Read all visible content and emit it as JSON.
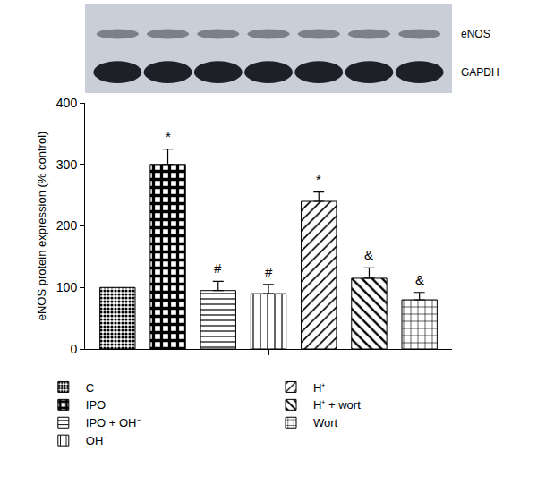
{
  "chart_data": {
    "type": "bar",
    "categories": [
      null
    ],
    "y_label": "eNOS protein expression (% control)",
    "ylim": [
      0,
      400
    ],
    "yticks": [
      0,
      100,
      200,
      300,
      400
    ],
    "tick_labels": "y",
    "grid": false,
    "legend": "bottom",
    "blot_labels": [
      "eNOS",
      "GAPDH"
    ],
    "series": [
      {
        "name": "C",
        "color": "#000000",
        "marker": "checker",
        "values": [
          100
        ],
        "error": [
          null
        ],
        "significance": null
      },
      {
        "name": "IPO",
        "color": "#000000",
        "marker": "bold_checker",
        "values": [
          300
        ],
        "error": [
          25
        ],
        "significance": "*"
      },
      {
        "name": "IPO + OH⁻",
        "color": "#000000",
        "marker": "horizontal",
        "values": [
          95
        ],
        "error": [
          15
        ],
        "significance": "#"
      },
      {
        "name": "OH⁻",
        "color": "#000000",
        "marker": "vertical",
        "values": [
          90
        ],
        "error": [
          15
        ],
        "significance": "#"
      },
      {
        "name": "H⁺",
        "color": "#000000",
        "marker": "diagonal",
        "values": [
          240
        ],
        "error": [
          15
        ],
        "significance": "*"
      },
      {
        "name": "H⁺ + wort",
        "color": "#000000",
        "marker": "back_diagonal",
        "values": [
          115
        ],
        "error": [
          17
        ],
        "significance": "&"
      },
      {
        "name": "Wort",
        "color": "#000000",
        "marker": "grid",
        "values": [
          80
        ],
        "error": [
          12
        ],
        "significance": "&"
      }
    ]
  }
}
